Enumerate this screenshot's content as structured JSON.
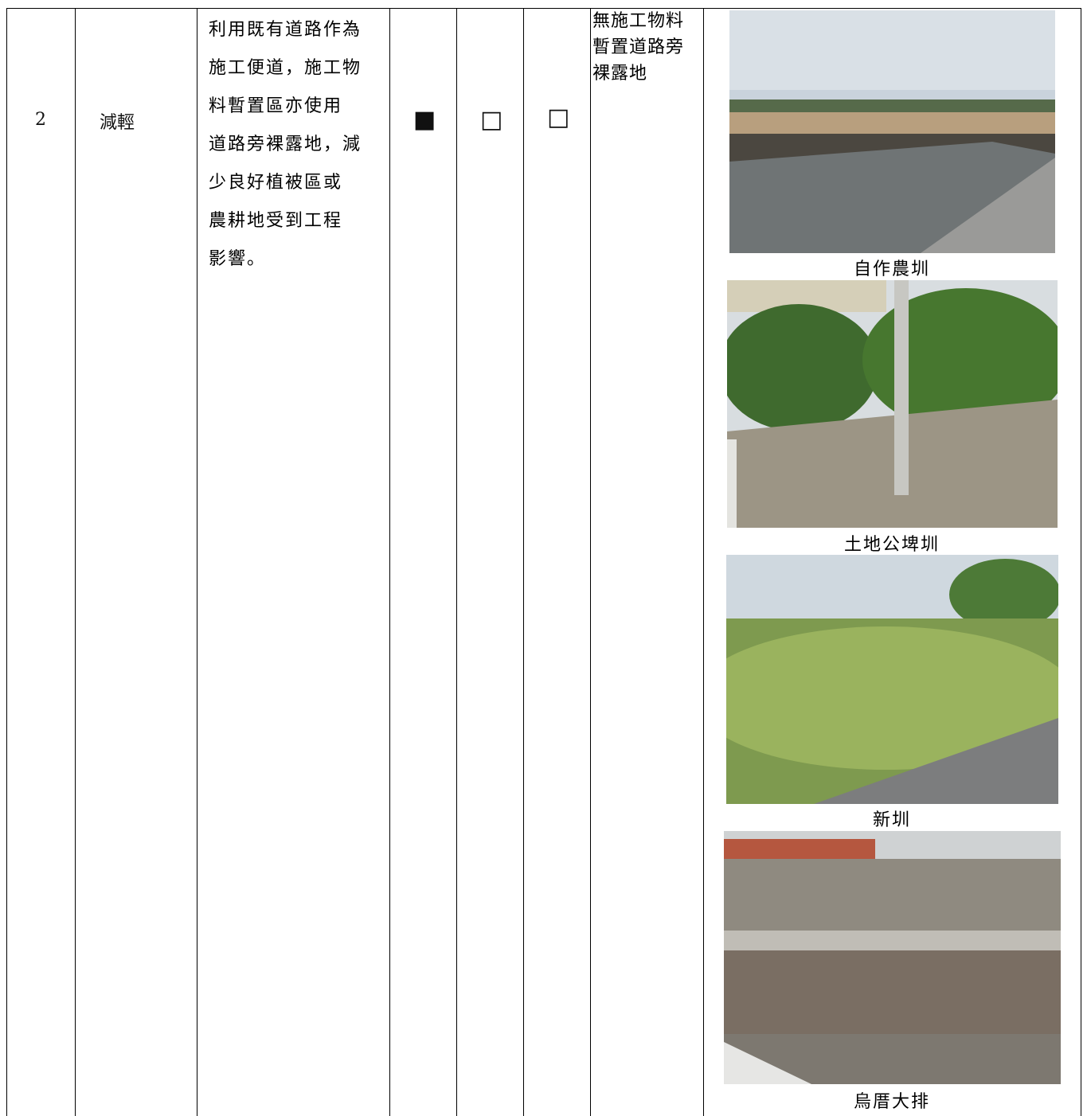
{
  "row": {
    "number": "2",
    "category": "減輕",
    "description_lines": [
      "利用既有道路作為",
      "施工便道，施工物",
      "料暫置區亦使用",
      "道路旁裸露地，減",
      "少良好植被區或",
      "農耕地受到工程",
      "影響。"
    ],
    "checkboxes": [
      "■",
      "□",
      "□"
    ],
    "note_lines": [
      "無施工物料",
      "暫置道路旁",
      "裸露地"
    ],
    "photo_captions": [
      "自作農圳",
      "土地公埤圳",
      "新圳",
      "烏厝大排"
    ]
  }
}
